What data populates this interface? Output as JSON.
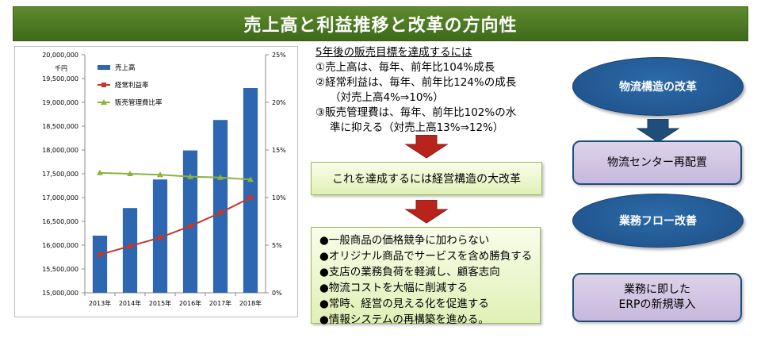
{
  "title": "売上高と利益推移と改革の方向性",
  "colors": {
    "title_bg": "#4f7d23",
    "sales_bar": "#2e67b1",
    "profit_line": "#c0392b",
    "sga_line": "#8db33b",
    "ellipse": "#245a97"
  },
  "chart_data": {
    "type": "bar",
    "categories": [
      "2013年",
      "2014年",
      "2015年",
      "2016年",
      "2017年",
      "2018年"
    ],
    "series": [
      {
        "name": "売上高",
        "type": "bar",
        "axis": "left",
        "values": [
          16200000,
          16780000,
          17380000,
          17990000,
          18630000,
          19300000
        ]
      },
      {
        "name": "経常利益率",
        "type": "line",
        "axis": "right",
        "values": [
          4.0,
          4.9,
          5.8,
          7.0,
          8.4,
          10.0
        ]
      },
      {
        "name": "販売管理費比率",
        "type": "line",
        "axis": "right",
        "values": [
          12.6,
          12.5,
          12.4,
          12.2,
          12.1,
          11.9
        ]
      }
    ],
    "ylim_left": [
      15000000,
      20000000
    ],
    "ylim_right": [
      0,
      25
    ],
    "y_ticks_left": [
      "15,000,000",
      "15,500,000",
      "16,000,000",
      "16,500,000",
      "17,000,000",
      "17,500,000",
      "18,000,000",
      "18,500,000",
      "19,000,000",
      "19,500,000",
      "20,000,000"
    ],
    "y_ticks_right": [
      "0%",
      "5%",
      "10%",
      "15%",
      "20%",
      "25%"
    ],
    "ylabel_left": "千円",
    "grid": false,
    "legend_position": "top-left"
  },
  "plan": {
    "heading": "5年後の販売目標を達成するには",
    "lines": [
      "①売上高は、毎年、前年比104%成長",
      "②経常利益は、毎年、前年比124%の成長",
      "（対売上高4%⇒10%）",
      "③販売管理費は、毎年、前年比102%の水",
      "準に抑える（対売上高13%⇒12%）"
    ]
  },
  "reform_box": "これを達成するには経営構造の大改革",
  "actions": [
    "●一般商品の価格競争に加わらない",
    "●オリジナル商品でサービスを含め勝負する",
    "●支店の業務負荷を軽減し、顧客志向",
    "●物流コストを大幅に削減する",
    "●常時、経営の見える化を促進する",
    "●情報システムの再構築を進める。"
  ],
  "right": {
    "ellipse1": "物流構造の改革",
    "box1": "物流センター再配置",
    "ellipse2": "業務フロー改善",
    "box2_line1": "業務に即した",
    "box2_line2": "ERPの新規導入"
  }
}
